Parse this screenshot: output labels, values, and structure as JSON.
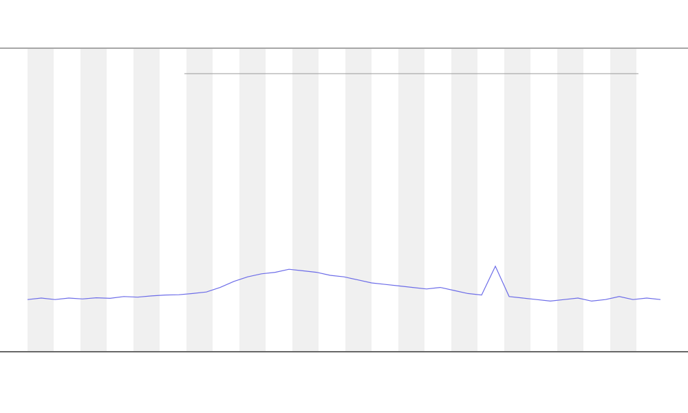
{
  "chart_data": {
    "type": "line",
    "series": [
      {
        "color": "#6b6be8",
        "values": [
          17,
          17.5,
          17,
          17.5,
          17.2,
          17.6,
          17.4,
          18,
          17.8,
          18.2,
          18.5,
          18.6,
          19,
          19.5,
          21,
          23,
          24.5,
          25.5,
          26,
          27,
          26.5,
          26,
          25,
          24.5,
          23.5,
          22.5,
          22,
          21.5,
          21,
          20.5,
          21,
          20,
          19,
          18.5,
          28,
          18,
          17.5,
          17,
          16.5,
          17,
          17.5,
          16.5,
          17,
          18,
          17,
          17.5,
          17
        ]
      }
    ],
    "ylim": [
      0,
      100
    ]
  }
}
